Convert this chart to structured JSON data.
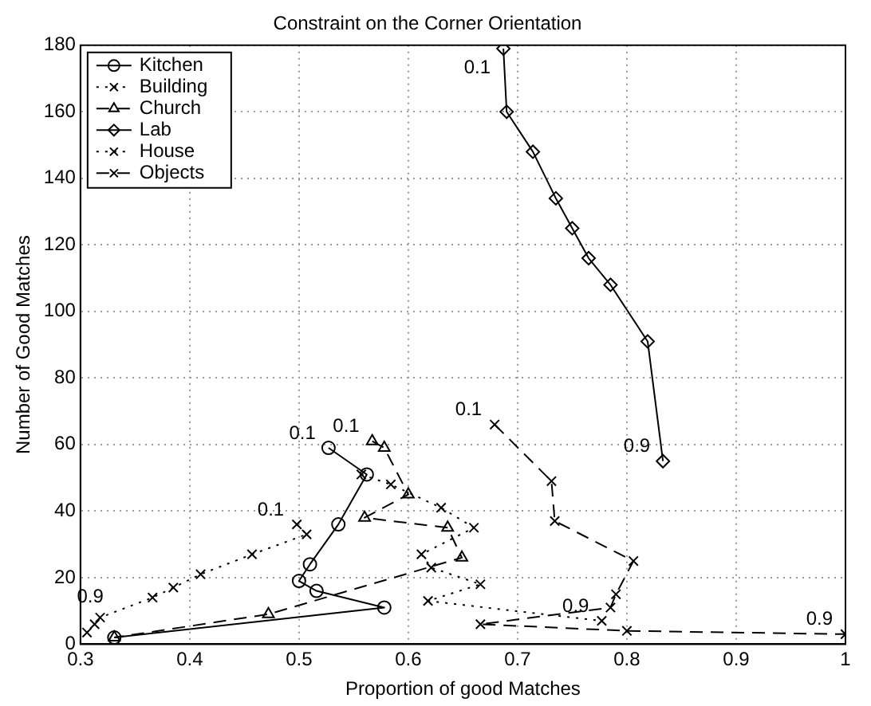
{
  "chart_data": {
    "type": "line",
    "title": "Constraint on the Corner Orientation",
    "xlabel": "Proportion of good Matches",
    "ylabel": "Number of Good Matches",
    "xlim": [
      0.3,
      1
    ],
    "xticks": [
      0.3,
      0.4,
      0.5,
      0.6,
      0.7,
      0.8,
      0.9,
      1
    ],
    "ylim": [
      0,
      180
    ],
    "yticks": [
      0,
      20,
      40,
      60,
      80,
      100,
      120,
      140,
      160,
      180
    ],
    "grid": true,
    "legend": "top left",
    "series": [
      {
        "name": "Kitchen",
        "color": "#000000",
        "marker": "circle",
        "line_style": "solid",
        "x": [
          0.527,
          0.562,
          0.536,
          0.51,
          0.5,
          0.516,
          0.578,
          0.331
        ],
        "values": [
          59,
          51,
          36,
          24,
          19,
          16,
          11,
          2
        ]
      },
      {
        "name": "Building",
        "color": "#000000",
        "marker": "cross",
        "line_style": "dotted",
        "x": [
          0.557,
          0.584,
          0.63,
          0.66,
          0.612,
          0.621,
          0.666,
          0.618,
          0.777
        ],
        "values": [
          51,
          48,
          41,
          35,
          27,
          23,
          18,
          13,
          7
        ]
      },
      {
        "name": "Church",
        "color": "#000000",
        "marker": "triangle",
        "line_style": "dashed",
        "x": [
          0.567,
          0.578,
          0.6,
          0.56,
          0.636,
          0.649,
          0.472,
          0.331
        ],
        "values": [
          61,
          59,
          45,
          38,
          35,
          26,
          9,
          2
        ]
      },
      {
        "name": "Lab",
        "color": "#000000",
        "marker": "diamond",
        "line_style": "solid",
        "x": [
          0.687,
          0.69,
          0.714,
          0.735,
          0.75,
          0.765,
          0.785,
          0.819,
          0.833
        ],
        "values": [
          179,
          160,
          148,
          134,
          125,
          116,
          108,
          91,
          55
        ]
      },
      {
        "name": "House",
        "color": "#000000",
        "marker": "cross",
        "line_style": "dotted",
        "x": [
          0.498,
          0.507,
          0.457,
          0.41,
          0.385,
          0.366,
          0.318,
          0.313,
          0.306
        ],
        "values": [
          36,
          33,
          27,
          21,
          17,
          14,
          8,
          6,
          3.5
        ]
      },
      {
        "name": "Objects",
        "color": "#000000",
        "marker": "cross",
        "line_style": "dashed",
        "x": [
          0.679,
          0.731,
          0.734,
          0.806,
          0.79,
          0.785,
          0.666,
          0.8,
          1
        ],
        "values": [
          66,
          49,
          37,
          25,
          15,
          11,
          6,
          4,
          3
        ]
      }
    ],
    "annotations": [
      {
        "text": "0.1",
        "x": 0.687,
        "y": 179
      },
      {
        "text": "0.9",
        "x": 0.833,
        "y": 55
      },
      {
        "text": "0.1",
        "x": 0.527,
        "y": 59
      },
      {
        "text": "0.1",
        "x": 0.567,
        "y": 61
      },
      {
        "text": "0.1",
        "x": 0.498,
        "y": 36
      },
      {
        "text": "0.9",
        "x": 0.306,
        "y": 3.5
      },
      {
        "text": "0.1",
        "x": 0.679,
        "y": 66
      },
      {
        "text": "0.9",
        "x": 0.777,
        "y": 7
      },
      {
        "text": "0.9",
        "x": 1,
        "y": 3
      }
    ]
  }
}
